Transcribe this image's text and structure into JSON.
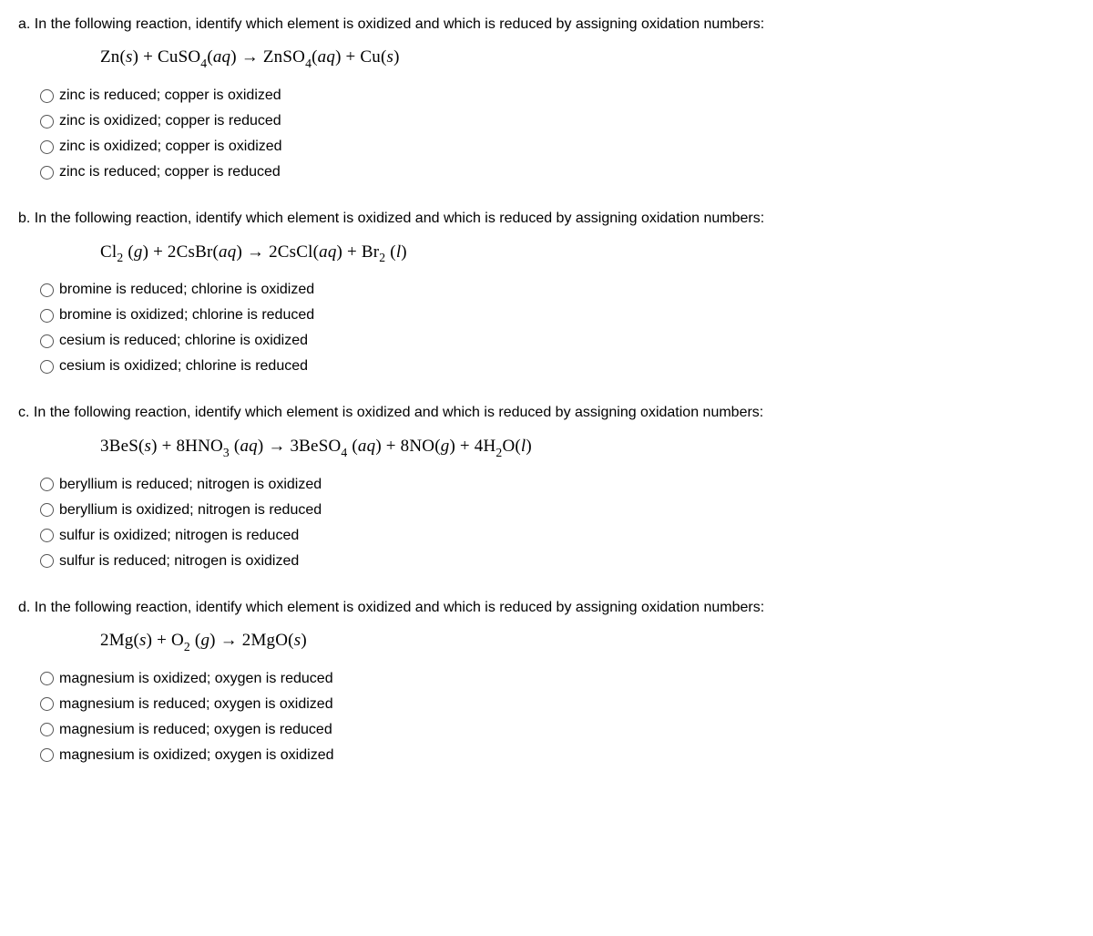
{
  "questions": [
    {
      "letter": "a.",
      "prompt": "In the following reaction, identify which element is oxidized and which is reduced by assigning oxidation numbers:",
      "equation_html": "Zn(<i>s</i>) + CuSO<span class='sub'>4</span>(<i>aq</i>) → ZnSO<span class='sub'>4</span>(<i>aq</i>) + Cu(<i>s</i>)",
      "options": [
        "zinc is reduced; copper is oxidized",
        "zinc is oxidized; copper is reduced",
        "zinc is oxidized; copper is oxidized",
        "zinc is reduced; copper is reduced"
      ]
    },
    {
      "letter": "b.",
      "prompt": "In the following reaction, identify which element is oxidized and which is reduced by assigning oxidation numbers:",
      "equation_html": "Cl<span class='sub'>2</span> (<i>g</i>) + 2CsBr(<i>aq</i>) → 2CsCl(<i>aq</i>) + Br<span class='sub'>2</span> (<i>l</i>)",
      "options": [
        "bromine is reduced; chlorine is oxidized",
        "bromine is oxidized; chlorine is reduced",
        "cesium is reduced; chlorine is oxidized",
        "cesium is oxidized; chlorine is reduced"
      ]
    },
    {
      "letter": "c.",
      "prompt": "In the following reaction, identify which element is oxidized and which is reduced by assigning oxidation numbers:",
      "equation_html": "3BeS(<i>s</i>) + 8HNO<span class='sub'>3</span> (<i>aq</i>) → 3BeSO<span class='sub'>4</span> (<i>aq</i>) + 8NO(<i>g</i>) + 4H<span class='sub'>2</span>O(<i>l</i>)",
      "options": [
        "beryllium is reduced; nitrogen is oxidized",
        "beryllium is oxidized; nitrogen is reduced",
        "sulfur is oxidized; nitrogen is reduced",
        "sulfur is reduced; nitrogen is oxidized"
      ]
    },
    {
      "letter": "d.",
      "prompt": "In the following reaction, identify which element is oxidized and which is reduced by assigning oxidation numbers:",
      "equation_html": "2Mg(<i>s</i>) + O<span class='sub'>2</span> (<i>g</i>) → 2MgO(<i>s</i>)",
      "options": [
        "magnesium is oxidized; oxygen is reduced",
        "magnesium is reduced; oxygen is oxidized",
        "magnesium is reduced; oxygen is reduced",
        "magnesium is oxidized; oxygen is oxidized"
      ]
    }
  ]
}
